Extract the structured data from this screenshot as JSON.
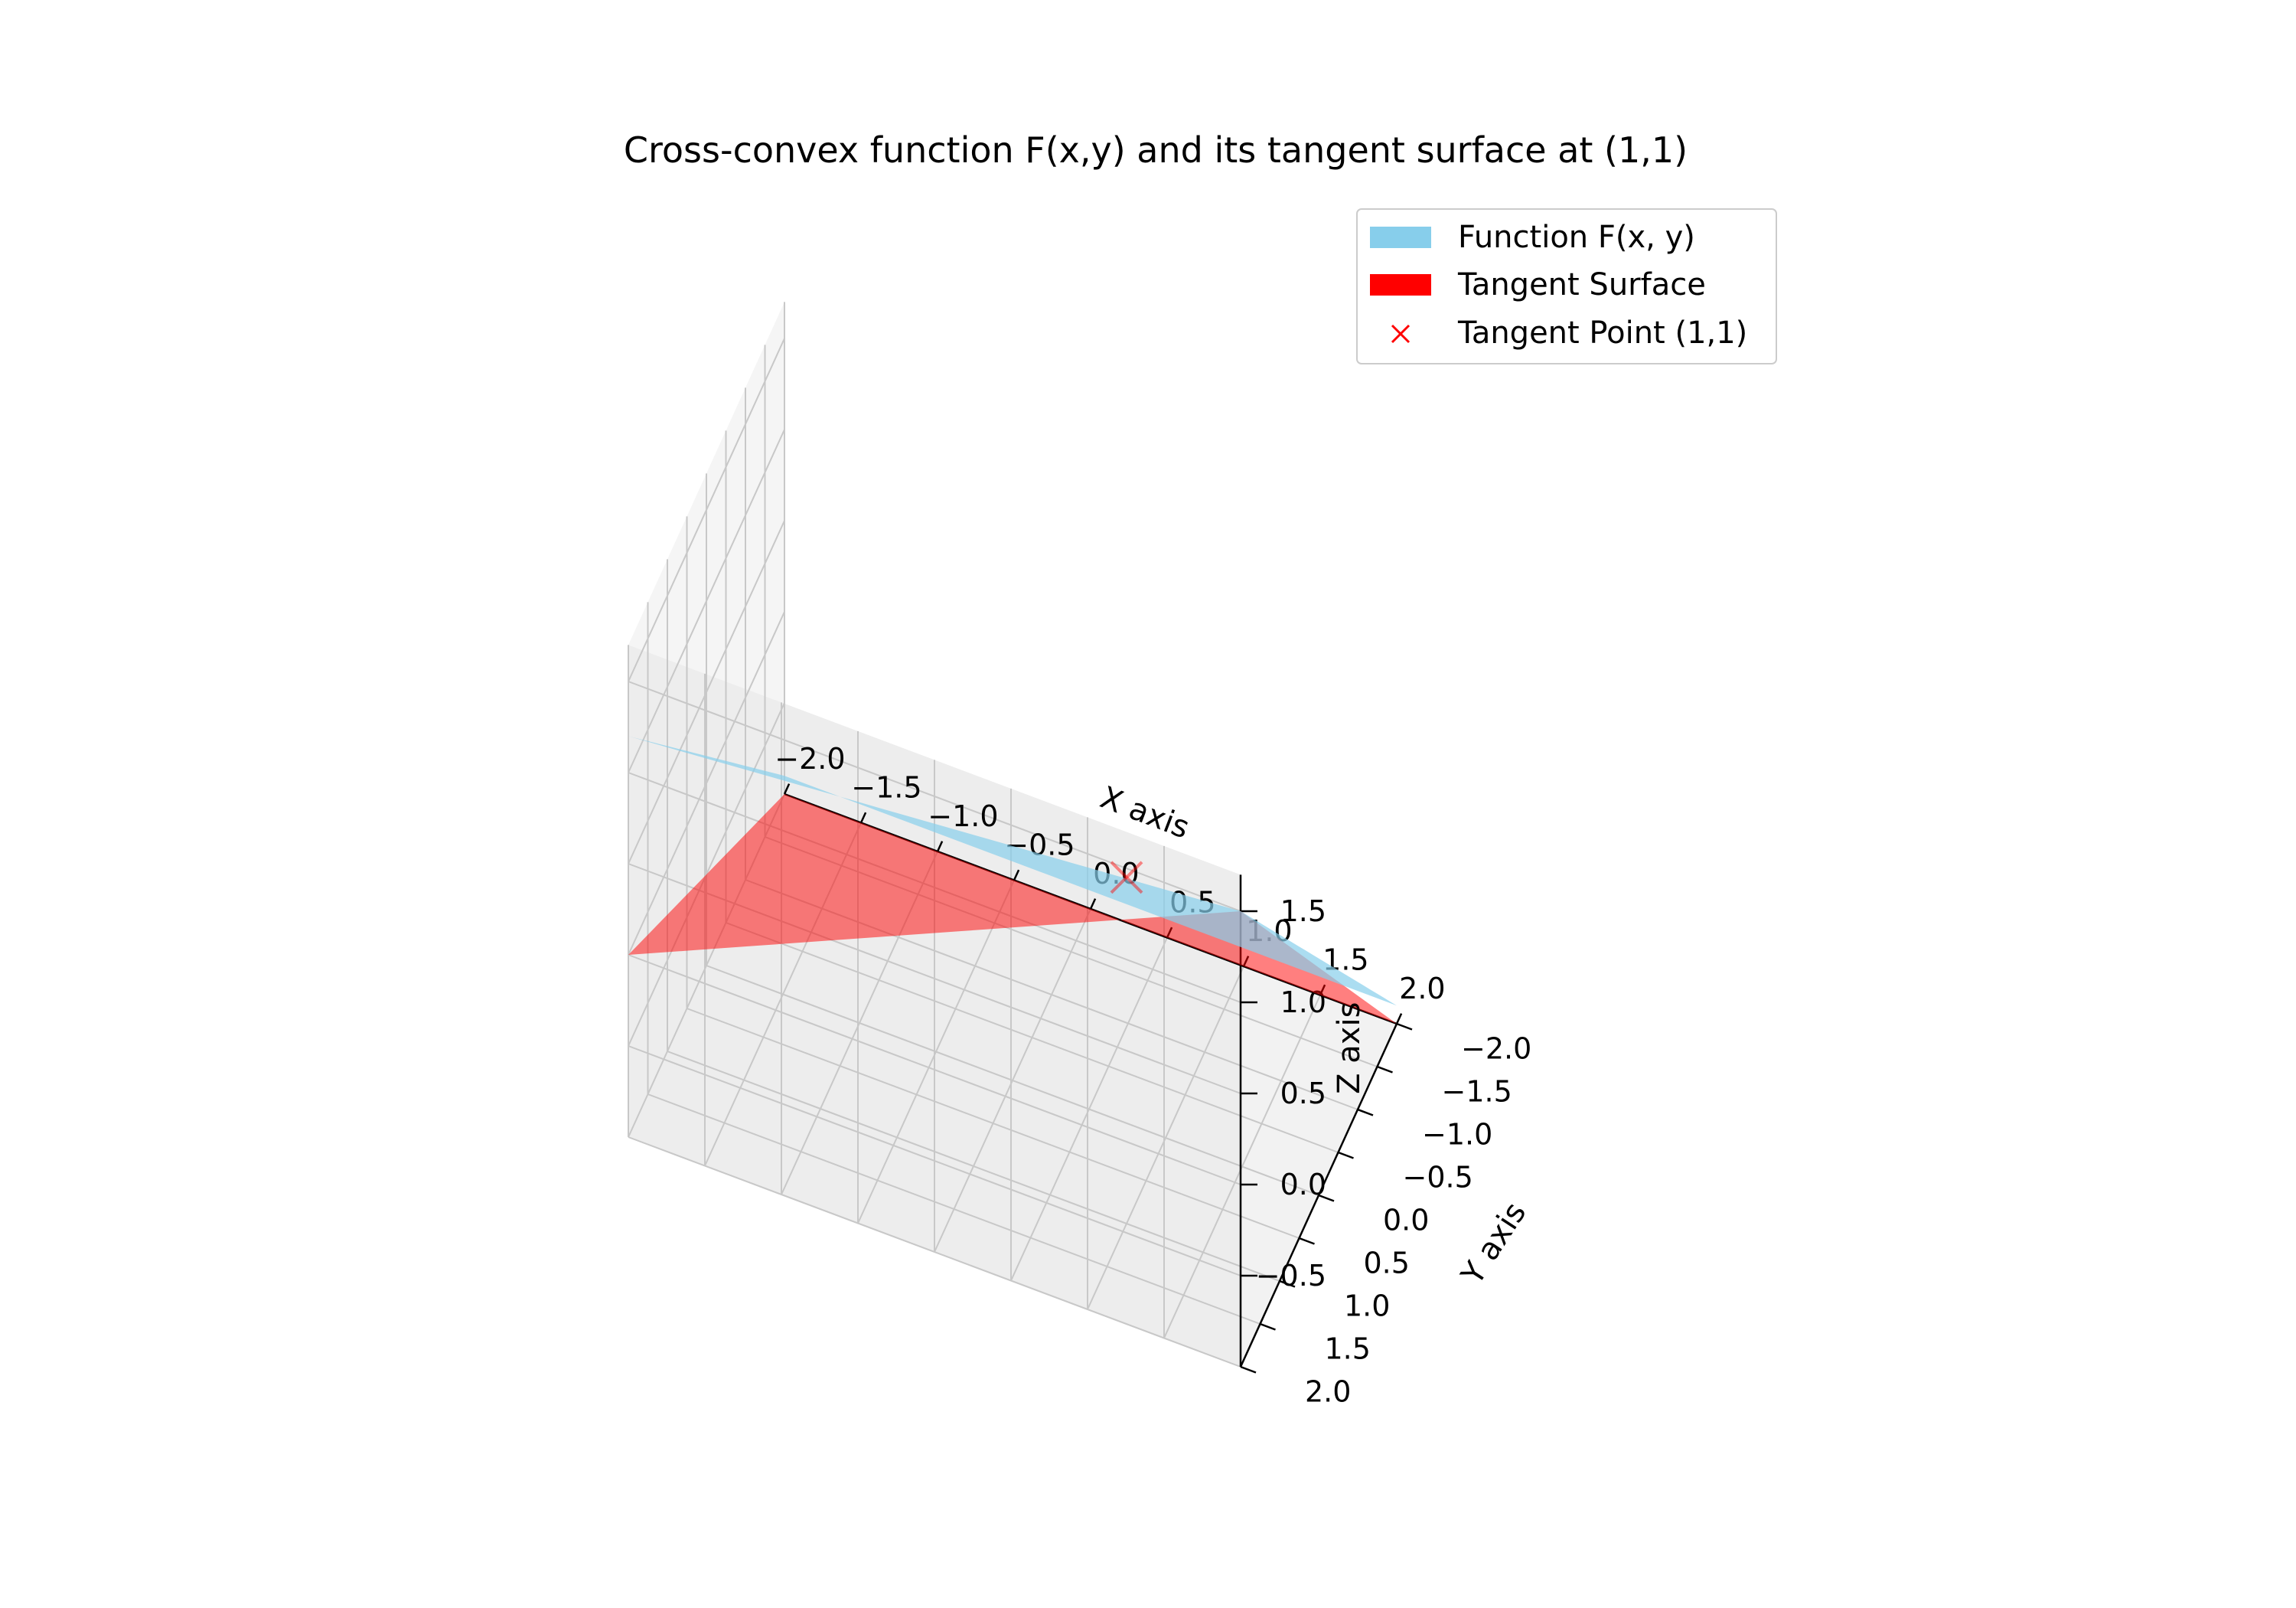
{
  "chart_data": {
    "type": "surface3d",
    "title": "Cross-convex function F(x,y) and its tangent surface at (1,1)",
    "xlabel": "X axis",
    "ylabel": "Y axis",
    "zlabel": "Z axis",
    "xlim": [
      -2,
      2
    ],
    "ylim": [
      -2,
      2
    ],
    "zlim": [
      -1,
      1.7
    ],
    "x_ticks": [
      -2.0,
      -1.5,
      -1.0,
      -0.5,
      0.0,
      0.5,
      1.0,
      1.5,
      2.0
    ],
    "y_ticks": [
      -2.0,
      -1.5,
      -1.0,
      -0.5,
      0.0,
      0.5,
      1.0,
      1.5,
      2.0
    ],
    "z_ticks": [
      -0.5,
      0.0,
      0.5,
      1.0,
      1.5
    ],
    "x_tick_labels": [
      "−2.0",
      "−1.5",
      "−1.0",
      "−0.5",
      "0.0",
      "0.5",
      "1.0",
      "1.5",
      "2.0"
    ],
    "y_tick_labels": [
      "−2.0",
      "−1.5",
      "−1.0",
      "−0.5",
      "0.0",
      "0.5",
      "1.0",
      "1.5",
      "2.0"
    ],
    "z_tick_labels": [
      "−0.5",
      "0.0",
      "0.5",
      "1.0",
      "1.5"
    ],
    "grid": true,
    "legend_position": "top-right",
    "series": [
      {
        "name": "Function F(x, y)",
        "kind": "surface",
        "color": "#87ceeb",
        "alpha": 0.7,
        "corner_values": {
          "x=-2,y=-2": -0.9,
          "x=2,y=-2": -0.9,
          "x=2,y=2": 1.5,
          "x=-2,y=2": 1.2
        }
      },
      {
        "name": "Tangent Surface",
        "kind": "surface",
        "color": "#ff0000",
        "alpha": 0.5,
        "corner_values": {
          "x=-2,y=-2": -1.0,
          "x=2,y=-2": -1.0,
          "x=2,y=2": 1.5,
          "x=-2,y=2": 0.0
        }
      },
      {
        "name": "Tangent Point (1,1)",
        "kind": "point",
        "marker": "x",
        "color": "#ff0000",
        "x": 1,
        "y": 1,
        "z": 0.9
      }
    ]
  }
}
